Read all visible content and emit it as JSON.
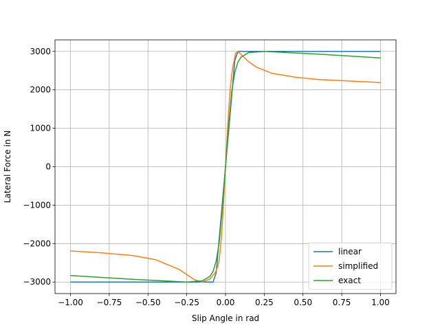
{
  "chart_data": {
    "type": "line",
    "title": "",
    "xlabel": "Slip Angle in rad",
    "ylabel": "Lateral Force in N",
    "xlim": [
      -1.1,
      1.1
    ],
    "ylim": [
      -3300,
      3300
    ],
    "xticks": [
      -1.0,
      -0.75,
      -0.5,
      -0.25,
      0.0,
      0.25,
      0.5,
      0.75,
      1.0
    ],
    "xtick_labels": [
      "−1.00",
      "−0.75",
      "−0.50",
      "−0.25",
      "0.00",
      "0.25",
      "0.50",
      "0.75",
      "1.00"
    ],
    "yticks": [
      -3000,
      -2000,
      -1000,
      0,
      1000,
      2000,
      3000
    ],
    "ytick_labels": [
      "−3000",
      "−2000",
      "−1000",
      "0",
      "1000",
      "2000",
      "3000"
    ],
    "grid": true,
    "legend_position": "lower-right",
    "series": [
      {
        "name": "linear",
        "color": "#1f77b4",
        "x": [
          -1.0,
          -0.1,
          -0.08,
          -0.06,
          -0.04,
          -0.02,
          0.0,
          0.02,
          0.04,
          0.06,
          0.08,
          0.1,
          1.0
        ],
        "y": [
          -3000,
          -3000,
          -3000,
          -2760,
          -1840,
          -920,
          0,
          920,
          1840,
          2760,
          3000,
          3000,
          3000
        ]
      },
      {
        "name": "simplified",
        "color": "#ff7f0e",
        "x": [
          -1.0,
          -0.8,
          -0.6,
          -0.45,
          -0.3,
          -0.2,
          -0.15,
          -0.1,
          -0.08,
          -0.065,
          -0.05,
          -0.04,
          -0.03,
          -0.02,
          -0.01,
          0.0,
          0.01,
          0.02,
          0.03,
          0.04,
          0.05,
          0.065,
          0.08,
          0.1,
          0.15,
          0.2,
          0.3,
          0.45,
          0.6,
          0.8,
          1.0
        ],
        "y": [
          -2190,
          -2240,
          -2310,
          -2420,
          -2670,
          -2940,
          -3000,
          -2920,
          -2820,
          -2750,
          -2600,
          -2400,
          -2000,
          -1450,
          -750,
          0,
          750,
          1450,
          2000,
          2400,
          2650,
          2950,
          3000,
          2920,
          2730,
          2590,
          2430,
          2330,
          2270,
          2230,
          2190
        ]
      },
      {
        "name": "exact",
        "color": "#2ca02c",
        "x": [
          -1.0,
          -0.8,
          -0.6,
          -0.4,
          -0.25,
          -0.15,
          -0.1,
          -0.08,
          -0.06,
          -0.04,
          -0.02,
          0.0,
          0.02,
          0.04,
          0.06,
          0.08,
          0.1,
          0.15,
          0.25,
          0.4,
          0.6,
          0.8,
          1.0
        ],
        "y": [
          -2830,
          -2880,
          -2930,
          -2970,
          -3000,
          -2970,
          -2850,
          -2720,
          -2450,
          -1950,
          -1050,
          0,
          1050,
          1950,
          2450,
          2720,
          2850,
          2970,
          3000,
          2970,
          2930,
          2880,
          2830
        ]
      }
    ]
  }
}
